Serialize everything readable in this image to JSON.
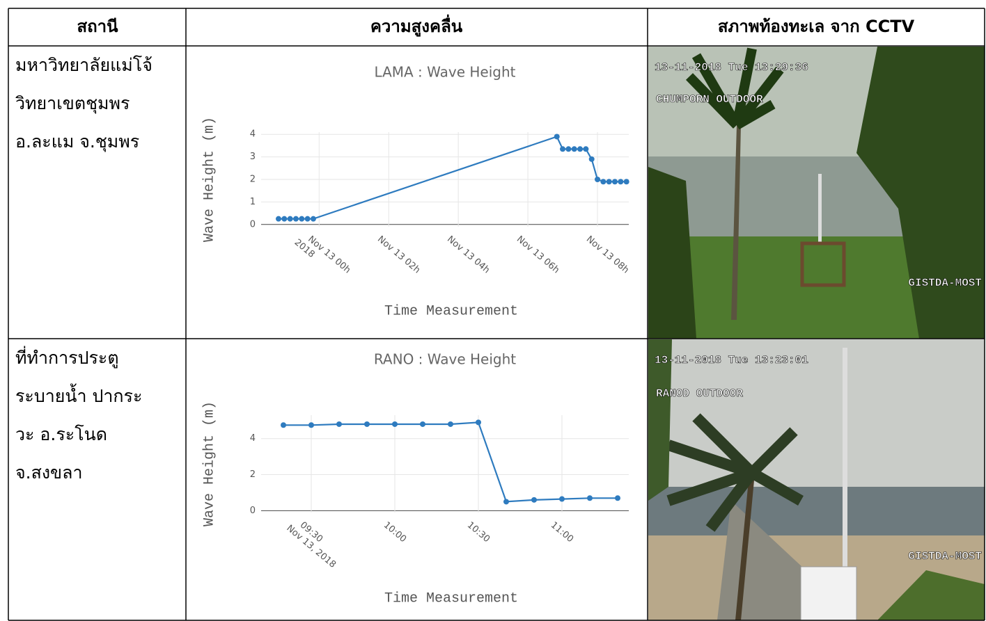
{
  "table": {
    "headers": [
      "สถานี",
      "ความสูงคลื่น",
      "สภาพท้องทะเล จาก CCTV"
    ],
    "rows": [
      {
        "station": [
          "มหาวิทยาลัยแม่โจ้",
          "วิทยาเขตชุมพร",
          "อ.ละแม จ.ชุมพร"
        ],
        "cctv": {
          "timestamp": "13-11-2018 Tue 13:29:36",
          "camera": "CHUMPORN OUTDOOR",
          "watermark": "GISTDA-MOST"
        }
      },
      {
        "station": [
          "ที่ทำการประตู",
          "ระบายน้ำ ปากระ",
          "วะ อ.ระโนด",
          "จ.สงขลา"
        ],
        "cctv": {
          "timestamp": "13-11-2018 Tue 13:23:01",
          "camera": "RANOD OUTDOOR",
          "watermark": "GISTDA-MOST"
        }
      }
    ]
  },
  "chart_data": [
    {
      "type": "line",
      "title": "LAMA : Wave Height",
      "x_label": "Time Measurement",
      "y_label": "Wave Height (m)",
      "x": [
        "2018-11-12 22:50",
        "2018-11-12 23:00",
        "2018-11-12 23:10",
        "2018-11-12 23:20",
        "2018-11-12 23:30",
        "2018-11-12 23:40",
        "2018-11-12 23:50",
        "2018-11-13 06:50",
        "2018-11-13 07:00",
        "2018-11-13 07:10",
        "2018-11-13 07:20",
        "2018-11-13 07:30",
        "2018-11-13 07:40",
        "2018-11-13 07:50",
        "2018-11-13 08:00",
        "2018-11-13 08:10",
        "2018-11-13 08:20",
        "2018-11-13 08:30",
        "2018-11-13 08:40",
        "2018-11-13 08:50"
      ],
      "values": [
        0.25,
        0.25,
        0.25,
        0.25,
        0.25,
        0.25,
        0.25,
        3.9,
        3.35,
        3.35,
        3.35,
        3.35,
        3.35,
        2.9,
        2.0,
        1.9,
        1.9,
        1.9,
        1.9,
        1.9
      ],
      "color": "#2e7bbf",
      "xlim": [
        "2018-11-12 22:20",
        "2018-11-13 08:54"
      ],
      "xticks": [
        {
          "value": "2018-11-13 00:00",
          "label": "Nov 13 00h\n2018"
        },
        {
          "value": "2018-11-13 02:00",
          "label": "Nov 13 02h"
        },
        {
          "value": "2018-11-13 04:00",
          "label": "Nov 13 04h"
        },
        {
          "value": "2018-11-13 06:00",
          "label": "Nov 13 06h"
        },
        {
          "value": "2018-11-13 08:00",
          "label": "Nov 13 08h"
        }
      ],
      "ylim": [
        -0.1,
        4.1
      ],
      "yticks": [
        0,
        1,
        2,
        3,
        4
      ],
      "grid": true
    },
    {
      "type": "line",
      "title": "RANO : Wave Height",
      "x_label": "Time Measurement",
      "y_label": "Wave Height (m)",
      "x": [
        "2018-11-13 09:20",
        "2018-11-13 09:30",
        "2018-11-13 09:40",
        "2018-11-13 09:50",
        "2018-11-13 10:00",
        "2018-11-13 10:10",
        "2018-11-13 10:20",
        "2018-11-13 10:30",
        "2018-11-13 10:40",
        "2018-11-13 10:50",
        "2018-11-13 11:00",
        "2018-11-13 11:10",
        "2018-11-13 11:20"
      ],
      "values": [
        4.75,
        4.75,
        4.8,
        4.8,
        4.8,
        4.8,
        4.8,
        4.9,
        0.5,
        0.6,
        0.65,
        0.7,
        0.7
      ],
      "color": "#2e7bbf",
      "xlim": [
        "2018-11-13 09:12",
        "2018-11-13 11:24"
      ],
      "xticks": [
        {
          "value": "2018-11-13 09:30",
          "label": "09:30\nNov 13, 2018"
        },
        {
          "value": "2018-11-13 10:00",
          "label": "10:00"
        },
        {
          "value": "2018-11-13 10:30",
          "label": "10:30"
        },
        {
          "value": "2018-11-13 11:00",
          "label": "11:00"
        }
      ],
      "ylim": [
        -0.1,
        5.3
      ],
      "yticks": [
        0,
        2,
        4
      ],
      "grid": true
    }
  ]
}
